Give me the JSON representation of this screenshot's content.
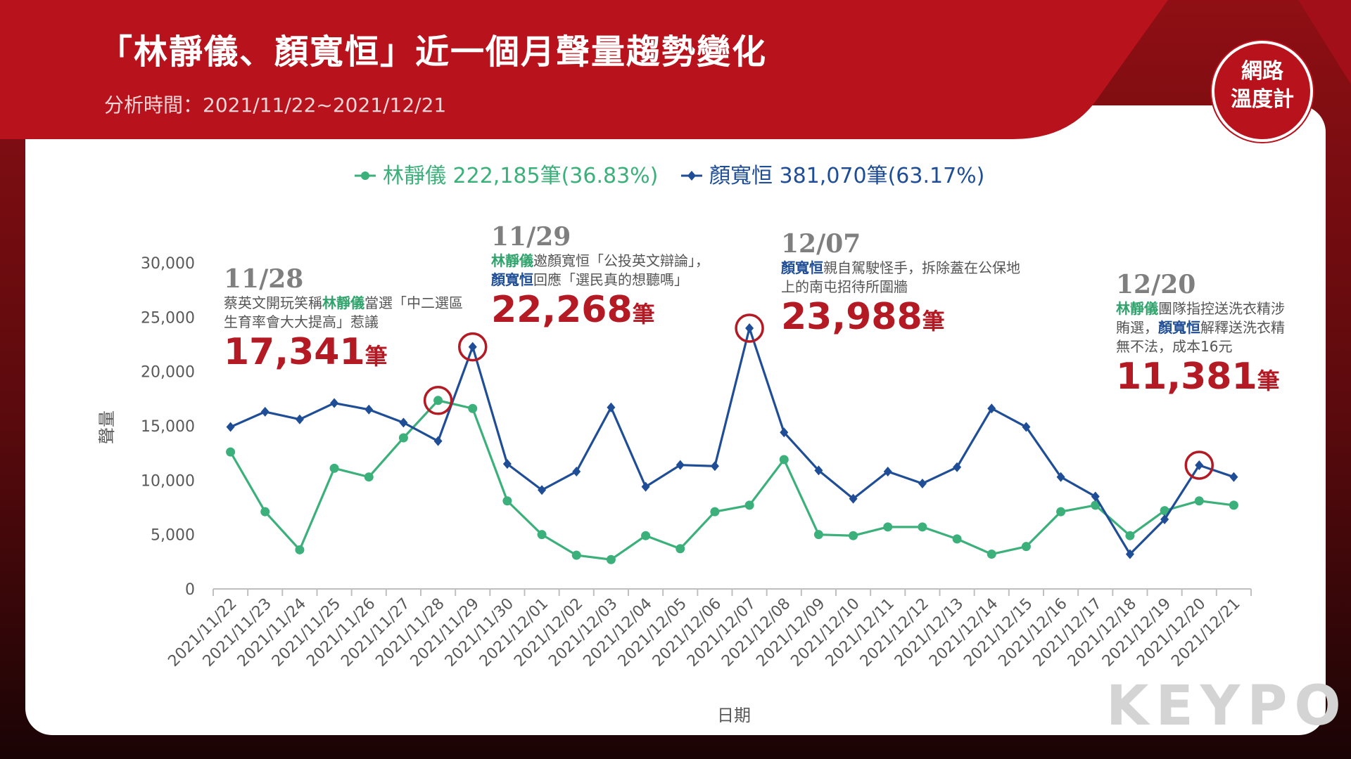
{
  "header": {
    "title": "「林靜儀、顏寬恒」近一個月聲量趨勢變化",
    "subtitle": "分析時間：2021/11/22~2021/12/21"
  },
  "logo": {
    "line1": "網路",
    "line2": "溫度計"
  },
  "watermark": "KEYPO",
  "colors": {
    "green": "#3cb07a",
    "blue": "#1f4e96",
    "accent_red": "#b31a24"
  },
  "chart_data": {
    "type": "line",
    "xlabel": "日期",
    "ylabel": "聲量",
    "ylim": [
      0,
      30000
    ],
    "yticks": [
      "0",
      "5,000",
      "10,000",
      "15,000",
      "20,000",
      "25,000",
      "30,000"
    ],
    "categories": [
      "2021/11/22",
      "2021/11/23",
      "2021/11/24",
      "2021/11/25",
      "2021/11/26",
      "2021/11/27",
      "2021/11/28",
      "2021/11/29",
      "2021/11/30",
      "2021/12/01",
      "2021/12/02",
      "2021/12/03",
      "2021/12/04",
      "2021/12/05",
      "2021/12/06",
      "2021/12/07",
      "2021/12/08",
      "2021/12/09",
      "2021/12/10",
      "2021/12/11",
      "2021/12/12",
      "2021/12/13",
      "2021/12/14",
      "2021/12/15",
      "2021/12/16",
      "2021/12/17",
      "2021/12/18",
      "2021/12/19",
      "2021/12/20",
      "2021/12/21"
    ],
    "legend_position": "top-center",
    "grid": false,
    "series": [
      {
        "name": "林靜儀",
        "legend_label": "林靜儀 222,185筆(36.83%)",
        "color": "#3cb07a",
        "marker": "circle",
        "values": [
          12600,
          7100,
          3600,
          11100,
          10300,
          13900,
          17341,
          16600,
          8100,
          5000,
          3100,
          2700,
          4900,
          3700,
          7100,
          7700,
          11900,
          5000,
          4900,
          5700,
          5700,
          4600,
          3200,
          3900,
          7100,
          7700,
          4900,
          7200,
          8100,
          7700
        ]
      },
      {
        "name": "顏寬恒",
        "legend_label": "顏寬恒 381,070筆(63.17%)",
        "color": "#1f4e96",
        "marker": "diamond",
        "values": [
          14900,
          16300,
          15600,
          17100,
          16500,
          15300,
          13600,
          22268,
          11500,
          9100,
          10800,
          16700,
          9400,
          11400,
          11300,
          23988,
          14400,
          10900,
          8300,
          10800,
          9700,
          11200,
          16600,
          14900,
          10300,
          8500,
          3200,
          6400,
          11381,
          10300
        ]
      }
    ]
  },
  "annotations": [
    {
      "date": "11/28",
      "desc_pre": "蔡英文開玩笑稱",
      "desc_hl": "林靜儀",
      "desc_post": "當選「中二選區生育率會大大提高」惹議",
      "number": "17,341",
      "unit": "筆"
    },
    {
      "date": "11/29",
      "hl1": "林靜儀",
      "mid": "邀顏寬恒「公投英文辯論」，",
      "hl2": "顏寬恒",
      "post": "回應「選民真的想聽嗎」",
      "number": "22,268",
      "unit": "筆"
    },
    {
      "date": "12/07",
      "hl": "顏寬恒",
      "post": "親自駕駛怪手，拆除蓋在公保地上的南屯招待所圍牆",
      "number": "23,988",
      "unit": "筆"
    },
    {
      "date": "12/20",
      "hl1": "林靜儀",
      "mid": "團隊指控送洗衣精涉賄選，",
      "hl2": "顏寬恒",
      "post": "解釋送洗衣精無不法，成本16元",
      "number": "11,381",
      "unit": "筆"
    }
  ]
}
